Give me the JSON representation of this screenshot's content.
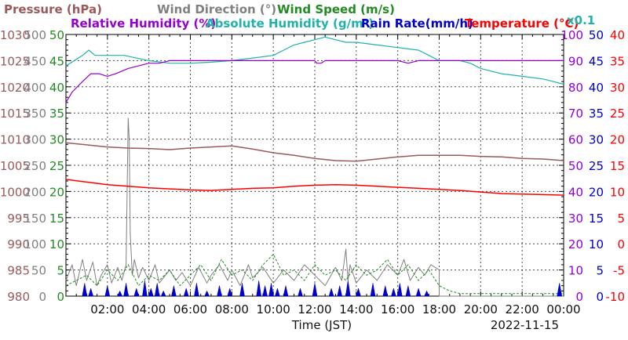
{
  "chart_data": {
    "type": "line",
    "legend": [
      {
        "key": "pressure",
        "label": "Pressure (hPa)",
        "color": "#9a5a5a"
      },
      {
        "key": "wind_direction",
        "label": "Wind Direction (°)",
        "color": "#808080"
      },
      {
        "key": "wind_speed",
        "label": "Wind Speed (m/s)",
        "color": "#228b22"
      },
      {
        "key": "relative_humidity",
        "label": "Relative Humidity (%)",
        "color": "#9400d3"
      },
      {
        "key": "absolute_humidity",
        "label": "Absolute Humidity (g/m³)",
        "color": "#20b2aa"
      },
      {
        "key": "rain_rate",
        "label": "Rain Rate(mm/h)",
        "color": "#0000cd"
      },
      {
        "key": "temperature",
        "label": "Temperature (°C)",
        "color": "#ff0000"
      },
      {
        "key": "scale_note",
        "label": "x0.1",
        "color": "#20b2aa"
      }
    ],
    "xlabel": "Time (JST)",
    "date": "2022-11-15",
    "x_ticks": [
      "02:00",
      "04:00",
      "06:00",
      "08:00",
      "10:00",
      "12:00",
      "14:00",
      "16:00",
      "18:00",
      "20:00",
      "22:00",
      "00:00"
    ],
    "x_range_hours": [
      0,
      24
    ],
    "grid": true,
    "axes": {
      "pressure": {
        "ticks": [
          980,
          985,
          990,
          995,
          1000,
          1005,
          1010,
          1015,
          1020,
          1025,
          1030
        ],
        "range": [
          980,
          1030
        ],
        "color": "#9a5a5a"
      },
      "wind_direction": {
        "ticks": [
          0,
          50,
          100,
          150,
          200,
          250,
          300,
          350,
          400,
          450,
          500
        ],
        "range": [
          0,
          500
        ],
        "color": "#808080"
      },
      "wind_speed": {
        "ticks": [
          0,
          5,
          10,
          15,
          20,
          25,
          30,
          35,
          40,
          45,
          50
        ],
        "range": [
          0,
          50
        ],
        "color": "#228b22"
      },
      "relative_humidity": {
        "ticks": [
          0,
          10,
          20,
          30,
          40,
          50,
          60,
          70,
          80,
          90,
          100
        ],
        "range": [
          0,
          100
        ],
        "color": "#9400d3"
      },
      "absolute_humidity": {
        "ticks": [
          0,
          5,
          10,
          15,
          20,
          25,
          30,
          35,
          40,
          45,
          50
        ],
        "range": [
          0,
          50
        ],
        "color": "#0000cd"
      },
      "temperature": {
        "ticks": [
          -10,
          -5,
          0,
          5,
          10,
          15,
          20,
          25,
          30,
          35,
          40
        ],
        "range": [
          -10,
          40
        ],
        "color": "#ff0000"
      }
    },
    "series": [
      {
        "name": "Pressure (hPa)",
        "key": "pressure",
        "axis": "pressure",
        "color": "#9a5a5a",
        "x": [
          0,
          1,
          2,
          3,
          4,
          5,
          6,
          7,
          8,
          9,
          10,
          11,
          12,
          13,
          14,
          15,
          16,
          17,
          18,
          19,
          20,
          21,
          22,
          23,
          24
        ],
        "values": [
          1009.3,
          1008.9,
          1008.5,
          1008.3,
          1008.2,
          1008.0,
          1008.3,
          1008.5,
          1008.7,
          1008.1,
          1007.4,
          1006.9,
          1006.3,
          1005.9,
          1005.8,
          1006.2,
          1006.6,
          1006.9,
          1006.9,
          1006.9,
          1006.7,
          1006.6,
          1006.3,
          1006.2,
          1005.9
        ]
      },
      {
        "name": "Temperature (°C)",
        "key": "temperature",
        "axis": "temperature",
        "color": "#ff0000",
        "x": [
          0,
          1,
          2,
          3,
          4,
          5,
          6,
          7,
          8,
          9,
          10,
          11,
          12,
          13,
          14,
          15,
          16,
          17,
          18,
          19,
          20,
          21,
          22,
          23,
          24
        ],
        "values": [
          12.3,
          11.8,
          11.3,
          11.0,
          10.7,
          10.5,
          10.3,
          10.2,
          10.4,
          10.6,
          10.7,
          11.0,
          11.2,
          11.3,
          11.2,
          11.0,
          10.8,
          10.6,
          10.4,
          10.2,
          9.9,
          9.6,
          9.5,
          9.4,
          9.3
        ]
      },
      {
        "name": "Relative Humidity (%)",
        "key": "relative_humidity",
        "axis": "relative_humidity",
        "color": "#9400d3",
        "x": [
          0,
          0.3,
          0.8,
          1.2,
          1.6,
          2.0,
          2.4,
          3.0,
          3.5,
          4.0,
          4.5,
          5.0,
          6.0,
          7.0,
          8.0,
          9.0,
          10.0,
          11.0,
          12.0,
          12.1,
          12.3,
          12.5,
          13.0,
          14.0,
          15.0,
          16.0,
          16.5,
          17.0,
          18.0,
          19.0,
          20.0,
          21.0,
          22.0,
          23.0,
          24.0
        ],
        "values": [
          74,
          78,
          82,
          85,
          85,
          84,
          85,
          87,
          88,
          89,
          89,
          90,
          90,
          90,
          90,
          90,
          90,
          90,
          90,
          89,
          89,
          90,
          90,
          90,
          90,
          90,
          89,
          90,
          90,
          90,
          90,
          90,
          90,
          90,
          90
        ]
      },
      {
        "name": "Absolute Humidity (g/m³)",
        "key": "absolute_humidity",
        "axis": "absolute_humidity",
        "color": "#20b2aa",
        "x": [
          0,
          0.4,
          0.8,
          1.1,
          1.4,
          1.8,
          2.2,
          2.8,
          3.4,
          4.0,
          5.0,
          6.0,
          7.0,
          8.0,
          9.0,
          10.0,
          10.5,
          11.0,
          11.5,
          12.0,
          12.5,
          13.0,
          13.5,
          14.0,
          15.0,
          16.0,
          17.0,
          17.5,
          18.0,
          18.5,
          19.0,
          19.5,
          20.0,
          21.0,
          22.0,
          23.0,
          23.5,
          24.0
        ],
        "values": [
          44,
          45,
          46,
          47,
          46,
          46,
          46,
          46,
          45.5,
          45,
          44.5,
          44.5,
          44.7,
          45,
          45.5,
          46,
          47,
          48,
          48.5,
          49,
          49.5,
          49,
          48.5,
          48.5,
          48,
          47.5,
          47,
          46,
          45,
          45,
          45,
          44.5,
          43.5,
          42.5,
          42,
          41.5,
          41,
          40.5
        ]
      },
      {
        "name": "Wind Direction (°)",
        "key": "wind_direction",
        "axis": "wind_direction",
        "color": "#808080",
        "x": [
          0,
          0.3,
          0.5,
          0.8,
          1.0,
          1.3,
          1.5,
          1.7,
          2.0,
          2.2,
          2.5,
          2.7,
          2.9,
          3.0,
          3.05,
          3.1,
          3.2,
          3.3,
          3.5,
          3.7,
          4.0,
          4.3,
          4.5,
          5.0,
          5.3,
          5.6,
          6.0,
          6.4,
          6.8,
          7.0,
          7.4,
          7.8,
          8.0,
          8.4,
          8.8,
          9.0,
          9.5,
          10.0,
          10.5,
          11.0,
          11.5,
          12.0,
          12.5,
          13.0,
          13.3,
          13.5,
          13.6,
          13.7,
          14.0,
          14.5,
          15.0,
          15.5,
          16.0,
          16.3,
          16.6,
          17.0,
          17.3,
          17.6,
          18.0,
          18.0,
          24.0
        ],
        "values": [
          30,
          60,
          20,
          70,
          30,
          65,
          20,
          40,
          60,
          25,
          55,
          30,
          60,
          340,
          300,
          120,
          40,
          70,
          35,
          55,
          30,
          60,
          25,
          50,
          30,
          45,
          20,
          55,
          25,
          40,
          60,
          30,
          50,
          20,
          60,
          35,
          55,
          25,
          50,
          30,
          60,
          40,
          20,
          55,
          30,
          90,
          30,
          60,
          25,
          50,
          30,
          60,
          40,
          70,
          30,
          55,
          40,
          60,
          50,
          0,
          0
        ]
      },
      {
        "name": "Wind Speed (m/s)",
        "key": "wind_speed",
        "axis": "wind_speed",
        "color": "#228b22",
        "x": [
          0,
          0.5,
          1.0,
          1.5,
          2.0,
          2.5,
          3.0,
          3.5,
          4.0,
          4.5,
          5.0,
          5.5,
          6.0,
          6.5,
          7.0,
          7.5,
          8.0,
          8.5,
          9.0,
          9.5,
          10.0,
          10.5,
          11.0,
          11.5,
          12.0,
          12.5,
          13.0,
          13.5,
          14.0,
          14.5,
          15.0,
          15.5,
          16.0,
          16.5,
          17.0,
          17.5,
          18.0,
          18.5,
          19.0,
          20.0,
          21.0,
          22.0,
          23.0,
          24.0
        ],
        "values": [
          2,
          3,
          4,
          2,
          5,
          3,
          6,
          2,
          4,
          3,
          5,
          2,
          4,
          6,
          3,
          7,
          4,
          5,
          3,
          6,
          8,
          4,
          5,
          3,
          6,
          4,
          5,
          3,
          6,
          4,
          5,
          7,
          4,
          6,
          3,
          5,
          2,
          1,
          0.5,
          0.5,
          0.5,
          0.5,
          0.5,
          0.5
        ]
      },
      {
        "name": "Rain Rate(mm/h)",
        "key": "rain_rate",
        "axis": "absolute_humidity",
        "color": "#0000cd",
        "x": [
          0.9,
          1.2,
          2.0,
          2.6,
          2.9,
          3.4,
          3.8,
          4.1,
          4.4,
          4.7,
          5.2,
          5.8,
          6.3,
          6.8,
          7.4,
          7.9,
          8.5,
          9.3,
          9.6,
          9.9,
          10.2,
          10.6,
          11.3,
          12.0,
          12.8,
          13.2,
          13.6,
          14.1,
          14.8,
          15.4,
          15.8,
          16.1,
          16.5,
          17.0,
          17.4,
          23.8
        ],
        "values": [
          2.5,
          1.5,
          2.0,
          1.0,
          2.5,
          1.5,
          3.0,
          1.5,
          2.5,
          1.0,
          2.0,
          1.5,
          2.5,
          1.0,
          2.0,
          1.5,
          2.5,
          3.0,
          2.0,
          2.5,
          1.5,
          2.0,
          1.5,
          2.5,
          1.5,
          2.0,
          3.0,
          1.5,
          2.5,
          2.0,
          1.5,
          2.5,
          2.0,
          1.5,
          1.0,
          2.5
        ]
      }
    ]
  }
}
